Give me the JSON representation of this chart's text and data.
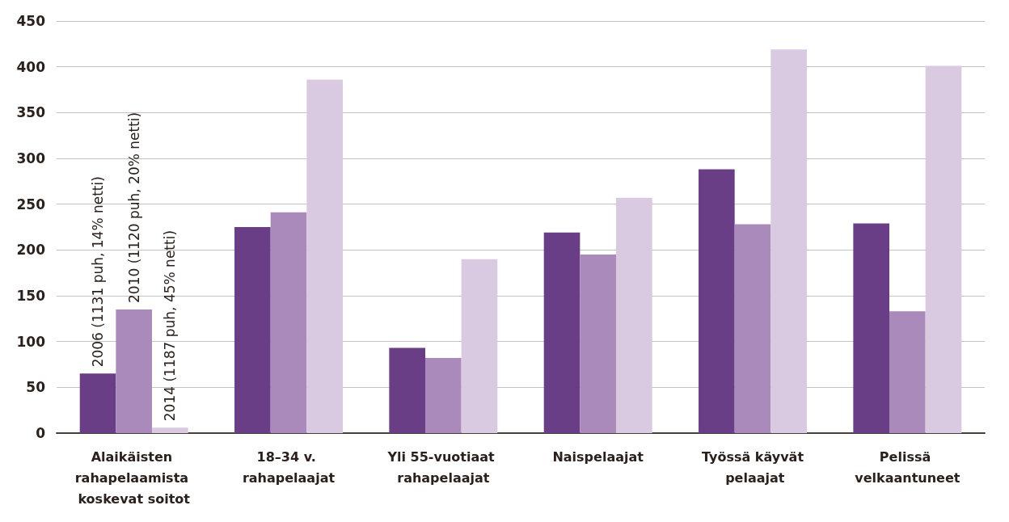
{
  "chart_data": {
    "type": "bar",
    "categories": [
      "Alaikäisten rahapelaamista koskevat soitot",
      "18–34 v. rahapelaajat",
      "Yli 55-vuotiaat rahapelaajat",
      "Naispelaajat",
      "Työssä käyvät pelaajat",
      "Pelissä velkaantuneet"
    ],
    "series": [
      {
        "name": "2006 (1131 puh, 14% netti)",
        "color": "#6a3e87",
        "values": [
          65,
          225,
          93,
          219,
          288,
          229
        ]
      },
      {
        "name": "2010 (1120 puh, 20% netti)",
        "color": "#a98aba",
        "values": [
          135,
          241,
          82,
          195,
          228,
          133
        ]
      },
      {
        "name": "2014 (1187 puh, 45% netti)",
        "color": "#d9cae2",
        "values": [
          6,
          386,
          190,
          257,
          419,
          401
        ]
      }
    ],
    "ylim": [
      0,
      450
    ],
    "yticks": [
      0,
      50,
      100,
      150,
      200,
      250,
      300,
      350,
      400,
      450
    ],
    "grid": "y",
    "legend": false
  }
}
